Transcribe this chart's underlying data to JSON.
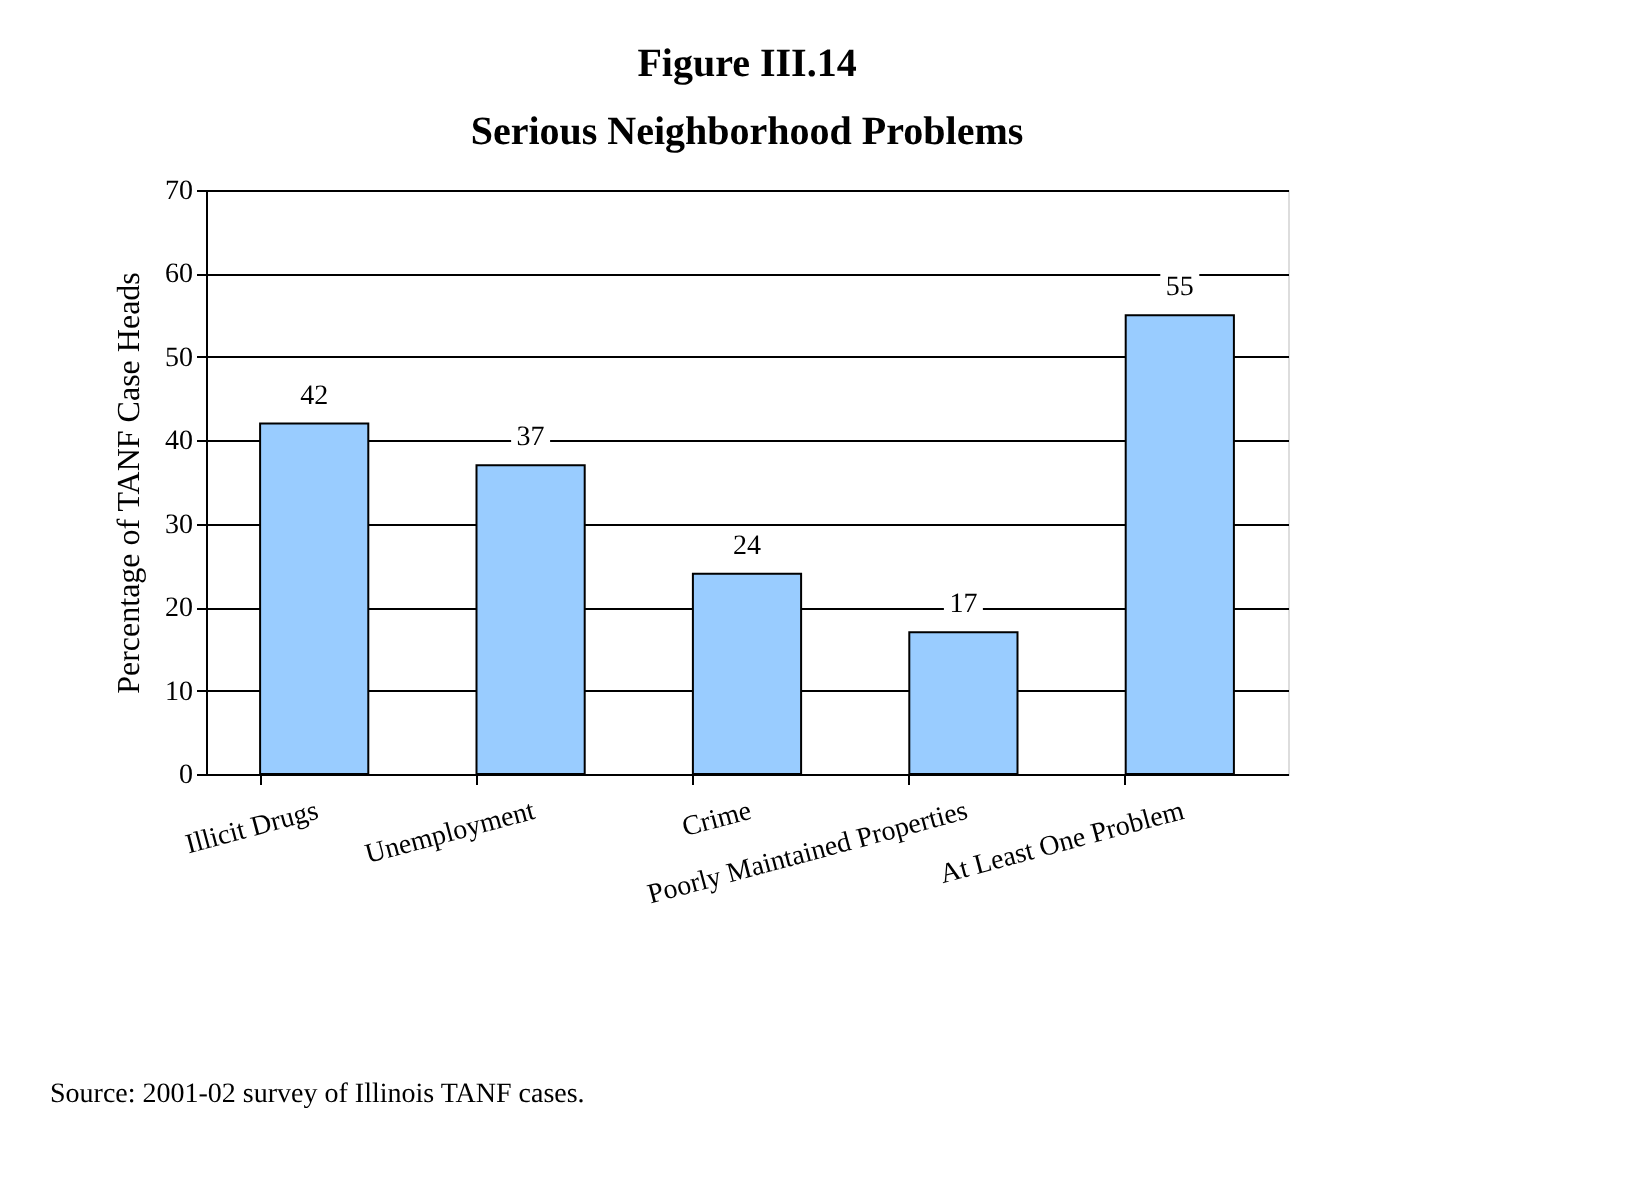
{
  "chart_data": {
    "type": "bar",
    "title": "Figure III.14",
    "subtitle": "Serious Neighborhood Problems",
    "ylabel": "Percentage of TANF Case Heads",
    "categories": [
      "Illicit Drugs",
      "Unemployment",
      "Crime",
      "Poorly Maintained Properties",
      "At Least One Problem"
    ],
    "values": [
      42,
      37,
      24,
      17,
      55
    ],
    "color": "#99ccff",
    "ylim": [
      0,
      70
    ],
    "yticks": [
      0,
      10,
      20,
      30,
      40,
      50,
      60,
      70
    ],
    "grid": "y",
    "data_labels": true,
    "annotations": [
      "Source: 2001-02 survey of Illinois TANF cases."
    ]
  }
}
